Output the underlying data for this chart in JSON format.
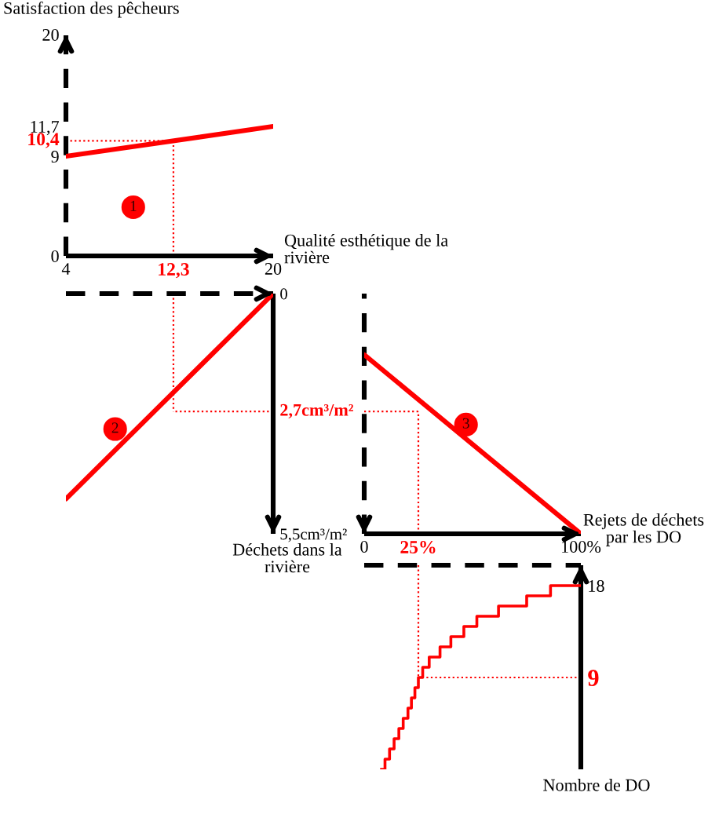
{
  "chart_data": [
    {
      "type": "line",
      "ylabel": "Satisfaction des pêcheurs",
      "xlabel": "Qualité esthétique de la\nrivière",
      "xlim": [
        4,
        20
      ],
      "ylim": [
        0,
        20
      ],
      "xticks": [
        4,
        20
      ],
      "yticks": [
        0,
        9,
        {
          "value": 11.7,
          "label": "11,7"
        },
        20
      ],
      "series": [
        {
          "color": "#ff0000",
          "x": [
            4,
            20
          ],
          "values": [
            9,
            11.7
          ]
        }
      ],
      "ref_lines": [
        {
          "axis": "x",
          "value": 12.3,
          "label": "12,3",
          "color": "#ff0000",
          "line_style": "dotted"
        },
        {
          "axis": "y",
          "value": 10.4,
          "label": "10,4",
          "color": "#ff0000",
          "line_style": "dotted"
        }
      ],
      "annotations": [
        {
          "text": "1",
          "x": 9.2,
          "y": 4.4
        }
      ]
    },
    {
      "type": "line",
      "ylabel": "Déchets dans la\nrivière",
      "xlim": [
        4,
        20
      ],
      "ylim": [
        5.5,
        0
      ],
      "yticks": [
        0,
        {
          "value": 5.5,
          "label": "5,5cm³/m²"
        }
      ],
      "tick_labels": "y",
      "series": [
        {
          "color": "#ff0000",
          "x": [
            4,
            20
          ],
          "values": [
            4.7,
            0
          ]
        }
      ],
      "ref_lines": [
        {
          "axis": "x",
          "value": 12.3,
          "color": "#ff0000",
          "line_style": "dotted"
        },
        {
          "axis": "y",
          "value": 2.7,
          "label": "2,7cm³/m²",
          "color": "#ff0000",
          "line_style": "dotted"
        }
      ],
      "annotations": [
        {
          "text": "2",
          "x": 7.8,
          "y": 3.1
        }
      ]
    },
    {
      "type": "line",
      "xlabel": "Rejets de déchets\npar les DO",
      "xlim": [
        0,
        100
      ],
      "ylim": [
        5.5,
        0
      ],
      "xticks": [
        0,
        {
          "value": 100,
          "label": "100%"
        }
      ],
      "tick_labels": "x",
      "series": [
        {
          "color": "#ff0000",
          "x": [
            0,
            100
          ],
          "values": [
            1.4,
            5.5
          ]
        }
      ],
      "ref_lines": [
        {
          "axis": "y",
          "value": 2.7,
          "color": "#ff0000",
          "line_style": "dotted"
        },
        {
          "axis": "x",
          "value": 25,
          "label": "25%",
          "color": "#ff0000",
          "line_style": "dotted"
        }
      ],
      "annotations": [
        {
          "text": "3",
          "x": 47,
          "y": 3.0
        }
      ]
    },
    {
      "type": "step",
      "ylabel": "Nombre de DO",
      "xlim": [
        0,
        100
      ],
      "ylim": [
        0,
        20
      ],
      "yticks": [
        9,
        18
      ],
      "tick_labels": "y",
      "series": [
        {
          "color": "#ff0000",
          "x": [
            8,
            9.6,
            11.7,
            13.8,
            16,
            18,
            20.2,
            21.8,
            23.4,
            25,
            27,
            30,
            35,
            40,
            46,
            52,
            62,
            75,
            86,
            100
          ],
          "values": [
            0,
            1,
            2,
            3,
            4,
            5,
            6,
            7,
            8,
            9,
            10,
            11,
            12,
            13,
            14,
            15,
            16,
            17,
            18,
            18
          ]
        }
      ],
      "ref_lines": [
        {
          "axis": "x",
          "value": 25,
          "color": "#ff0000",
          "line_style": "dotted"
        },
        {
          "axis": "y",
          "value": 9,
          "color": "#ff0000",
          "line_style": "dotted"
        }
      ]
    }
  ]
}
